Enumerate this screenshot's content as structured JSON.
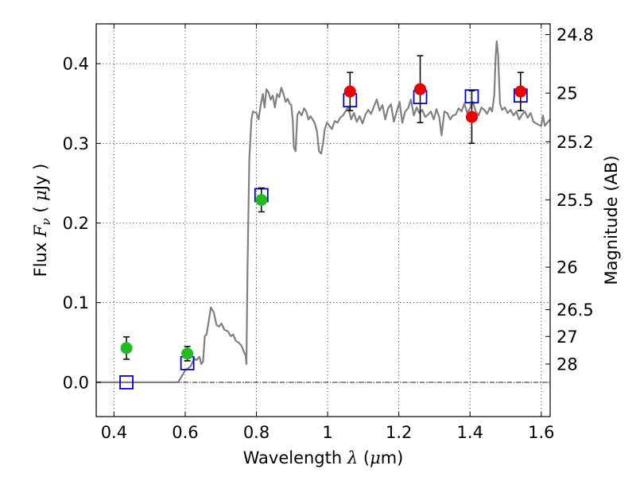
{
  "chart_data": {
    "type": "scatter",
    "xlabel": {
      "prefix": "Wavelength",
      "symbol": "λ",
      "unit_open": " (",
      "unit_mu": "μ",
      "unit_rest": "m)"
    },
    "ylabel": {
      "prefix": "Flux",
      "symbol": "F",
      "subscript": "ν",
      "unit_open": "( ",
      "unit_mu": "μ",
      "unit_rest": "Jy )"
    },
    "y2label": "Magnitude (AB)",
    "xlim": [
      0.35,
      1.625
    ],
    "ylim": [
      -0.043,
      0.45
    ],
    "x_ticks": [
      {
        "value": 0.4,
        "label": "0.4"
      },
      {
        "value": 0.6,
        "label": "0.6"
      },
      {
        "value": 0.8,
        "label": "0.8"
      },
      {
        "value": 1.0,
        "label": "1"
      },
      {
        "value": 1.2,
        "label": "1.2"
      },
      {
        "value": 1.4,
        "label": "1.4"
      },
      {
        "value": 1.6,
        "label": "1.6"
      }
    ],
    "y_ticks": [
      {
        "value": 0.0,
        "label": "0.0"
      },
      {
        "value": 0.1,
        "label": "0.1"
      },
      {
        "value": 0.2,
        "label": "0.2"
      },
      {
        "value": 0.3,
        "label": "0.3"
      },
      {
        "value": 0.4,
        "label": "0.4"
      }
    ],
    "y2_ticks": [
      {
        "value": 24.8,
        "label": "24.8"
      },
      {
        "value": 25.0,
        "label": "25"
      },
      {
        "value": 25.2,
        "label": "25.2"
      },
      {
        "value": 25.5,
        "label": "25.5"
      },
      {
        "value": 26.0,
        "label": "26"
      },
      {
        "value": 26.5,
        "label": "26.5"
      },
      {
        "value": 27.0,
        "label": "27"
      },
      {
        "value": 28.0,
        "label": "28"
      }
    ],
    "zero_line": 0.0,
    "grid": true,
    "model_spectrum": {
      "color": "#808080",
      "points": [
        [
          0.35,
          0.0
        ],
        [
          0.58,
          0.0
        ],
        [
          0.6,
          0.015
        ],
        [
          0.615,
          0.02
        ],
        [
          0.625,
          0.03
        ],
        [
          0.632,
          0.028
        ],
        [
          0.64,
          0.032
        ],
        [
          0.645,
          0.023
        ],
        [
          0.65,
          0.026
        ],
        [
          0.655,
          0.058
        ],
        [
          0.66,
          0.06
        ],
        [
          0.668,
          0.082
        ],
        [
          0.672,
          0.094
        ],
        [
          0.68,
          0.088
        ],
        [
          0.688,
          0.072
        ],
        [
          0.695,
          0.07
        ],
        [
          0.702,
          0.074
        ],
        [
          0.71,
          0.066
        ],
        [
          0.72,
          0.064
        ],
        [
          0.728,
          0.058
        ],
        [
          0.735,
          0.06
        ],
        [
          0.742,
          0.052
        ],
        [
          0.75,
          0.05
        ],
        [
          0.758,
          0.046
        ],
        [
          0.765,
          0.038
        ],
        [
          0.77,
          0.033
        ],
        [
          0.772,
          0.023
        ],
        [
          0.775,
          0.14
        ],
        [
          0.78,
          0.28
        ],
        [
          0.786,
          0.33
        ],
        [
          0.79,
          0.34
        ],
        [
          0.8,
          0.338
        ],
        [
          0.806,
          0.33
        ],
        [
          0.812,
          0.348
        ],
        [
          0.818,
          0.362
        ],
        [
          0.823,
          0.345
        ],
        [
          0.828,
          0.368
        ],
        [
          0.834,
          0.364
        ],
        [
          0.84,
          0.355
        ],
        [
          0.846,
          0.36
        ],
        [
          0.852,
          0.345
        ],
        [
          0.858,
          0.362
        ],
        [
          0.864,
          0.358
        ],
        [
          0.87,
          0.37
        ],
        [
          0.876,
          0.362
        ],
        [
          0.882,
          0.352
        ],
        [
          0.888,
          0.356
        ],
        [
          0.893,
          0.35
        ],
        [
          0.898,
          0.348
        ],
        [
          0.902,
          0.33
        ],
        [
          0.905,
          0.295
        ],
        [
          0.91,
          0.29
        ],
        [
          0.915,
          0.335
        ],
        [
          0.92,
          0.34
        ],
        [
          0.927,
          0.335
        ],
        [
          0.934,
          0.344
        ],
        [
          0.94,
          0.34
        ],
        [
          0.946,
          0.33
        ],
        [
          0.952,
          0.334
        ],
        [
          0.958,
          0.33
        ],
        [
          0.964,
          0.325
        ],
        [
          0.97,
          0.315
        ],
        [
          0.976,
          0.29
        ],
        [
          0.982,
          0.287
        ],
        [
          0.987,
          0.3
        ],
        [
          0.992,
          0.318
        ],
        [
          0.998,
          0.326
        ],
        [
          1.005,
          0.322
        ],
        [
          1.012,
          0.318
        ],
        [
          1.02,
          0.328
        ],
        [
          1.028,
          0.326
        ],
        [
          1.035,
          0.332
        ],
        [
          1.043,
          0.335
        ],
        [
          1.05,
          0.34
        ],
        [
          1.058,
          0.346
        ],
        [
          1.066,
          0.33
        ],
        [
          1.074,
          0.338
        ],
        [
          1.082,
          0.327
        ],
        [
          1.09,
          0.334
        ],
        [
          1.098,
          0.325
        ],
        [
          1.106,
          0.336
        ],
        [
          1.114,
          0.342
        ],
        [
          1.122,
          0.337
        ],
        [
          1.13,
          0.346
        ],
        [
          1.138,
          0.355
        ],
        [
          1.146,
          0.341
        ],
        [
          1.154,
          0.348
        ],
        [
          1.162,
          0.33
        ],
        [
          1.17,
          0.344
        ],
        [
          1.178,
          0.349
        ],
        [
          1.186,
          0.327
        ],
        [
          1.194,
          0.34
        ],
        [
          1.202,
          0.352
        ],
        [
          1.21,
          0.326
        ],
        [
          1.218,
          0.34
        ],
        [
          1.226,
          0.344
        ],
        [
          1.234,
          0.355
        ],
        [
          1.242,
          0.335
        ],
        [
          1.25,
          0.345
        ],
        [
          1.258,
          0.338
        ],
        [
          1.266,
          0.342
        ],
        [
          1.274,
          0.333
        ],
        [
          1.282,
          0.336
        ],
        [
          1.29,
          0.34
        ],
        [
          1.298,
          0.33
        ],
        [
          1.306,
          0.343
        ],
        [
          1.314,
          0.332
        ],
        [
          1.32,
          0.31
        ],
        [
          1.328,
          0.34
        ],
        [
          1.336,
          0.338
        ],
        [
          1.344,
          0.33
        ],
        [
          1.352,
          0.335
        ],
        [
          1.36,
          0.336
        ],
        [
          1.368,
          0.344
        ],
        [
          1.376,
          0.34
        ],
        [
          1.384,
          0.35
        ],
        [
          1.392,
          0.338
        ],
        [
          1.4,
          0.344
        ],
        [
          1.408,
          0.352
        ],
        [
          1.416,
          0.34
        ],
        [
          1.424,
          0.335
        ],
        [
          1.432,
          0.345
        ],
        [
          1.44,
          0.342
        ],
        [
          1.448,
          0.337
        ],
        [
          1.456,
          0.345
        ],
        [
          1.462,
          0.34
        ],
        [
          1.468,
          0.36
        ],
        [
          1.472,
          0.41
        ],
        [
          1.475,
          0.428
        ],
        [
          1.479,
          0.41
        ],
        [
          1.484,
          0.35
        ],
        [
          1.49,
          0.342
        ],
        [
          1.498,
          0.345
        ],
        [
          1.506,
          0.338
        ],
        [
          1.514,
          0.342
        ],
        [
          1.522,
          0.335
        ],
        [
          1.53,
          0.34
        ],
        [
          1.538,
          0.33
        ],
        [
          1.546,
          0.336
        ],
        [
          1.554,
          0.34
        ],
        [
          1.562,
          0.332
        ],
        [
          1.57,
          0.338
        ],
        [
          1.578,
          0.327
        ],
        [
          1.586,
          0.325
        ],
        [
          1.594,
          0.323
        ],
        [
          1.6,
          0.322
        ],
        [
          1.605,
          0.335
        ],
        [
          1.61,
          0.322
        ],
        [
          1.617,
          0.326
        ],
        [
          1.625,
          0.33
        ]
      ]
    },
    "model_photometry": {
      "color": "#0000cc",
      "points": [
        [
          0.435,
          0.0
        ],
        [
          0.606,
          0.024
        ],
        [
          0.814,
          0.235
        ],
        [
          1.063,
          0.354
        ],
        [
          1.26,
          0.358
        ],
        [
          1.405,
          0.359
        ],
        [
          1.542,
          0.36
        ]
      ]
    },
    "observed_optical": {
      "color": "#22bb22",
      "points": [
        {
          "x": 0.435,
          "y": 0.043,
          "err": 0.014
        },
        {
          "x": 0.606,
          "y": 0.036,
          "err": 0.009
        },
        {
          "x": 0.814,
          "y": 0.229,
          "err": 0.015
        }
      ]
    },
    "observed_nir": {
      "color": "#ee0000",
      "points": [
        {
          "x": 1.063,
          "y": 0.365,
          "err": 0.024
        },
        {
          "x": 1.26,
          "y": 0.368,
          "err": 0.042
        },
        {
          "x": 1.405,
          "y": 0.333,
          "err": 0.033
        },
        {
          "x": 1.542,
          "y": 0.365,
          "err": 0.024
        }
      ]
    }
  }
}
